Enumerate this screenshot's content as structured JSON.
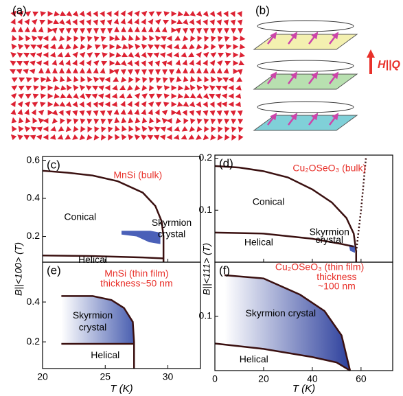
{
  "panels": {
    "a": "(a)",
    "b": "(b)",
    "b_arrow": "H||Q"
  },
  "chart_data": [
    {
      "type": "phase",
      "label": "(c)",
      "ylabel": "B||<100>  (T)",
      "xlim": [
        20,
        32.6
      ],
      "ylim": [
        0.065,
        0.62
      ],
      "xticks": [
        20,
        25,
        30
      ],
      "yticks": [
        0.2,
        0.4,
        0.6
      ],
      "show_xtick_labels": false,
      "boundaries": [
        {
          "x": [
            20,
            22,
            24,
            26,
            28,
            29,
            29.5,
            29.65,
            29.65
          ],
          "y": [
            0.545,
            0.535,
            0.52,
            0.49,
            0.43,
            0.36,
            0.28,
            0.2,
            0.065
          ]
        },
        {
          "x": [
            20,
            24,
            28,
            29.6
          ],
          "y": [
            0.1,
            0.097,
            0.09,
            0.085
          ]
        }
      ],
      "regions": [
        {
          "x": [
            26.3,
            28.6,
            29.4,
            29.4,
            28.5,
            27.5,
            26.3
          ],
          "y": [
            0.23,
            0.23,
            0.22,
            0.16,
            0.17,
            0.2,
            0.21
          ],
          "color": "#4a60b8",
          "gradient": false
        }
      ],
      "annotations": [
        {
          "text": "MnSi (bulk)",
          "x": 27.6,
          "y": 0.52,
          "color": "#e8302a"
        },
        {
          "text": "Conical",
          "x": 23,
          "y": 0.3,
          "color": "#000"
        },
        {
          "text": "Skyrmion",
          "x": 30.3,
          "y": 0.27,
          "color": "#000"
        },
        {
          "text": "crystal",
          "x": 30.3,
          "y": 0.21,
          "color": "#000"
        },
        {
          "text": "Helical",
          "x": 24,
          "y": 0.075,
          "color": "#000"
        }
      ]
    },
    {
      "type": "phase",
      "label": "(d)",
      "ylabel": "B||<111>  (T)",
      "xlim": [
        0,
        73
      ],
      "ylim": [
        0,
        0.206
      ],
      "xticks": [
        0,
        20,
        40,
        60
      ],
      "yticks": [
        0.1,
        0.2
      ],
      "show_xtick_labels": false,
      "boundaries": [
        {
          "x": [
            0,
            10,
            20,
            30,
            40,
            48,
            54,
            57,
            58,
            58
          ],
          "y": [
            0.185,
            0.182,
            0.175,
            0.163,
            0.14,
            0.115,
            0.085,
            0.055,
            0.02,
            0
          ]
        },
        {
          "x": [
            0,
            20,
            40,
            52,
            57
          ],
          "y": [
            0.057,
            0.055,
            0.045,
            0.035,
            0.03
          ]
        }
      ],
      "dotted": [
        {
          "x": [
            58,
            59,
            60,
            61,
            62
          ],
          "y": [
            0.02,
            0.06,
            0.1,
            0.15,
            0.2
          ]
        }
      ],
      "regions": [
        {
          "x": [
            55,
            57,
            57.5,
            57.5,
            55.5
          ],
          "y": [
            0.034,
            0.032,
            0.03,
            0.018,
            0.022
          ],
          "color": "#4a60b8",
          "gradient": false
        }
      ],
      "annotations": [
        {
          "text": "Cu₂OSeO₃ (bulk)",
          "x": 47,
          "y": 0.18,
          "color": "#e8302a"
        },
        {
          "text": "Conical",
          "x": 22,
          "y": 0.115,
          "color": "#000"
        },
        {
          "text": "Skyrmion",
          "x": 47,
          "y": 0.057,
          "color": "#000"
        },
        {
          "text": "crystal",
          "x": 47,
          "y": 0.042,
          "color": "#000"
        },
        {
          "text": "Helical",
          "x": 18,
          "y": 0.037,
          "color": "#000"
        }
      ]
    },
    {
      "type": "phase",
      "label": "(e)",
      "xlabel": "T (K)",
      "xlim": [
        20,
        32.6
      ],
      "ylim": [
        0.066,
        0.6
      ],
      "xticks": [
        20,
        25,
        30
      ],
      "yticks": [
        0.2,
        0.4
      ],
      "show_xtick_labels": true,
      "boundaries": [
        {
          "x": [
            21.5,
            24,
            25.5,
            26.5,
            27.2,
            27.3,
            27.3
          ],
          "y": [
            0.43,
            0.43,
            0.41,
            0.37,
            0.3,
            0.2,
            0.066
          ]
        },
        {
          "x": [
            21.5,
            27.3
          ],
          "y": [
            0.19,
            0.19
          ]
        }
      ],
      "regions": [
        {
          "x": [
            21.5,
            24,
            25.5,
            26.5,
            27.2,
            27.3,
            21.5
          ],
          "y": [
            0.43,
            0.43,
            0.41,
            0.37,
            0.3,
            0.19,
            0.19
          ],
          "color": "#4a5fb0",
          "gradient": true
        }
      ],
      "annotations": [
        {
          "text": "MnSi (thin film)",
          "x": 27.5,
          "y": 0.54,
          "color": "#e8302a"
        },
        {
          "text": "thickness~50 nm",
          "x": 27.5,
          "y": 0.49,
          "color": "#e8302a"
        },
        {
          "text": "Skyrmion",
          "x": 24,
          "y": 0.33,
          "color": "#000"
        },
        {
          "text": "crystal",
          "x": 24,
          "y": 0.27,
          "color": "#000"
        },
        {
          "text": "Helical",
          "x": 25,
          "y": 0.13,
          "color": "#000"
        }
      ]
    },
    {
      "type": "phase",
      "label": "(f)",
      "xlabel": "T (K)",
      "xlim": [
        0,
        73
      ],
      "ylim": [
        0,
        0.2
      ],
      "xticks": [
        0,
        20,
        40,
        60
      ],
      "yticks": [
        0.1
      ],
      "show_xtick_labels": true,
      "boundaries": [
        {
          "x": [
            4,
            20,
            35,
            45,
            52,
            55.5
          ],
          "y": [
            0.176,
            0.17,
            0.14,
            0.11,
            0.065,
            0
          ]
        },
        {
          "x": [
            0,
            20,
            40,
            50,
            55.5
          ],
          "y": [
            0.05,
            0.04,
            0.025,
            0.015,
            0
          ]
        }
      ],
      "regions": [
        {
          "x": [
            4,
            20,
            35,
            45,
            52,
            55.5,
            50,
            40,
            20,
            4
          ],
          "y": [
            0.176,
            0.17,
            0.14,
            0.11,
            0.065,
            0,
            0.015,
            0.025,
            0.04,
            0.047
          ],
          "color": "#2c3f9c",
          "gradient": true
        }
      ],
      "annotations": [
        {
          "text": "Cu₂OSeO₃ (thin film)",
          "x": 43,
          "y": 0.19,
          "color": "#e8302a"
        },
        {
          "text": "thickness",
          "x": 50,
          "y": 0.172,
          "color": "#e8302a"
        },
        {
          "text": "~100 nm",
          "x": 50,
          "y": 0.155,
          "color": "#e8302a"
        },
        {
          "text": "Skyrmion crystal",
          "x": 27,
          "y": 0.105,
          "color": "#000"
        },
        {
          "text": "Helical",
          "x": 16,
          "y": 0.02,
          "color": "#000"
        }
      ]
    }
  ]
}
